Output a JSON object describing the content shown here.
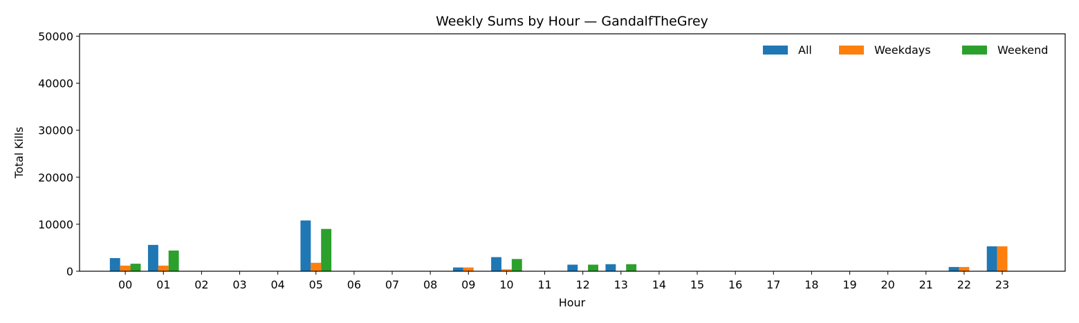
{
  "chart_data": {
    "type": "bar",
    "title": "Weekly Sums by Hour — GandalfTheGrey",
    "xlabel": "Hour",
    "ylabel": "Total Kills",
    "ylim": [
      0,
      50500
    ],
    "yticks": [
      0,
      10000,
      20000,
      30000,
      40000,
      50000
    ],
    "grid": false,
    "legend_position": "top-right",
    "categories": [
      "00",
      "01",
      "02",
      "03",
      "04",
      "05",
      "06",
      "07",
      "08",
      "09",
      "10",
      "11",
      "12",
      "13",
      "14",
      "15",
      "16",
      "17",
      "18",
      "19",
      "20",
      "21",
      "22",
      "23"
    ],
    "series": [
      {
        "name": "All",
        "color": "#1f77b4",
        "values": [
          2800,
          5600,
          0,
          0,
          0,
          10800,
          0,
          0,
          0,
          800,
          3000,
          0,
          1400,
          1500,
          0,
          0,
          0,
          0,
          0,
          0,
          0,
          0,
          900,
          5300
        ]
      },
      {
        "name": "Weekdays",
        "color": "#ff7f0e",
        "values": [
          1200,
          1200,
          0,
          0,
          0,
          1800,
          0,
          0,
          0,
          800,
          400,
          0,
          0,
          0,
          0,
          0,
          0,
          0,
          0,
          0,
          0,
          0,
          900,
          5300
        ]
      },
      {
        "name": "Weekend",
        "color": "#2ca02c",
        "values": [
          1600,
          4400,
          0,
          0,
          0,
          9000,
          0,
          0,
          0,
          0,
          2600,
          0,
          1400,
          1500,
          0,
          0,
          0,
          0,
          0,
          0,
          0,
          0,
          0,
          0
        ]
      }
    ]
  }
}
